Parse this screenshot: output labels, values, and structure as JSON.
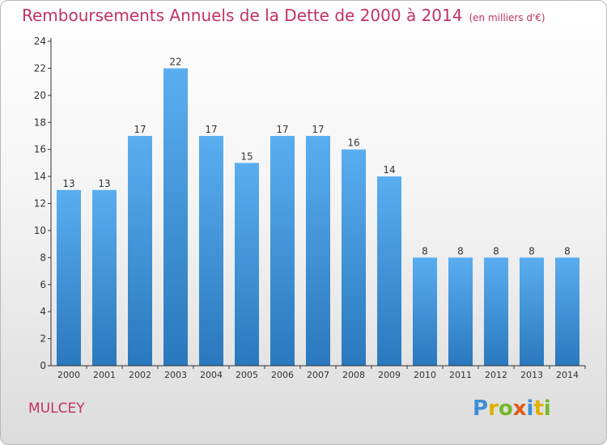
{
  "chart_data": {
    "type": "bar",
    "title": "Remboursements Annuels de la Dette de 2000 à 2014",
    "unit_label": "(en milliers d'€)",
    "categories": [
      "2000",
      "2001",
      "2002",
      "2003",
      "2004",
      "2005",
      "2006",
      "2007",
      "2008",
      "2009",
      "2010",
      "2011",
      "2012",
      "2013",
      "2014"
    ],
    "values": [
      13,
      13,
      17,
      22,
      17,
      15,
      17,
      17,
      16,
      14,
      8,
      8,
      8,
      8,
      8
    ],
    "ylim": [
      0,
      24
    ],
    "yticks": [
      0,
      2,
      4,
      6,
      8,
      10,
      12,
      14,
      16,
      18,
      20,
      22,
      24
    ],
    "grid": false,
    "colors": {
      "bar_top": "#5aaef0",
      "bar_bottom": "#2a78bd",
      "text": "#c0335f",
      "axis": "#333333"
    }
  },
  "footer": {
    "city": "MULCEY",
    "brand": "Proxiti"
  }
}
